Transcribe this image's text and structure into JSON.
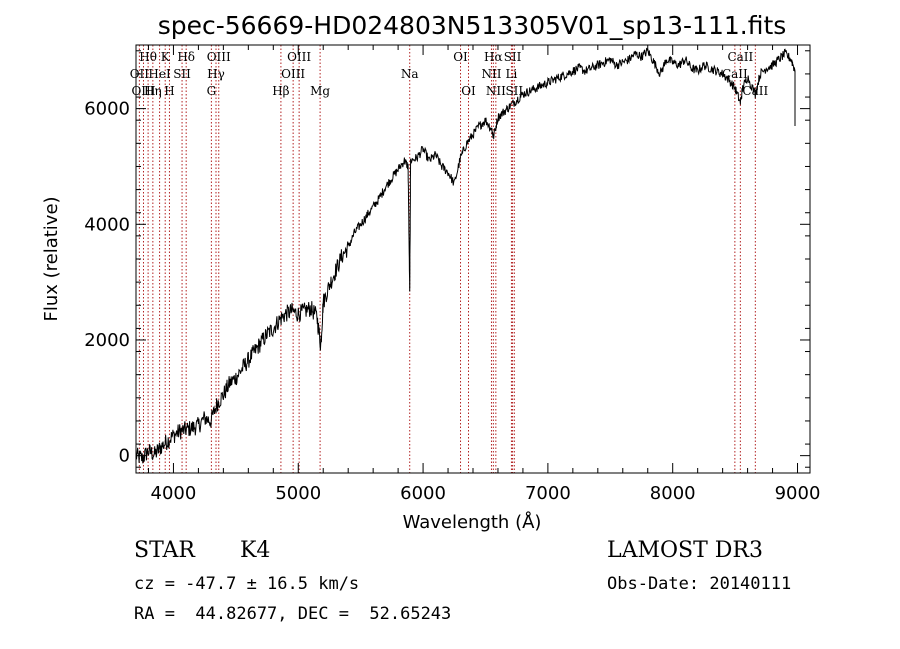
{
  "chart_data": {
    "type": "line",
    "title": "spec-56669-HD024803N513305V01_sp13-111.fits",
    "xlabel": "Wavelength (Å)",
    "ylabel": "Flux (relative)",
    "xlim": [
      3700,
      9100
    ],
    "ylim": [
      -300,
      7100
    ],
    "x_ticks": [
      4000,
      5000,
      6000,
      7000,
      8000,
      9000
    ],
    "x_tick_labels": [
      "4000",
      "5000",
      "6000",
      "7000",
      "8000",
      "9000"
    ],
    "y_ticks": [
      0,
      2000,
      4000,
      6000
    ],
    "y_tick_labels": [
      "0",
      "2000",
      "4000",
      "6000"
    ],
    "series": [
      {
        "name": "flux",
        "x": [
          3700,
          3750,
          3800,
          3850,
          3900,
          3950,
          4000,
          4050,
          4100,
          4150,
          4200,
          4250,
          4300,
          4350,
          4400,
          4450,
          4500,
          4550,
          4600,
          4650,
          4700,
          4750,
          4800,
          4850,
          4900,
          4950,
          5000,
          5050,
          5100,
          5150,
          5180,
          5200,
          5250,
          5300,
          5350,
          5400,
          5450,
          5500,
          5550,
          5600,
          5650,
          5700,
          5750,
          5800,
          5850,
          5880,
          5893,
          5900,
          5950,
          6000,
          6050,
          6100,
          6150,
          6200,
          6250,
          6300,
          6350,
          6400,
          6450,
          6500,
          6550,
          6563,
          6600,
          6650,
          6700,
          6750,
          6800,
          6850,
          6900,
          6950,
          7000,
          7050,
          7100,
          7150,
          7200,
          7250,
          7300,
          7350,
          7400,
          7450,
          7500,
          7550,
          7600,
          7650,
          7700,
          7750,
          7800,
          7850,
          7900,
          7950,
          8000,
          8050,
          8100,
          8150,
          8200,
          8250,
          8300,
          8350,
          8400,
          8450,
          8500,
          8542,
          8560,
          8600,
          8662,
          8700,
          8750,
          8800,
          8850,
          8900,
          8950,
          8980
        ],
        "y": [
          0,
          -50,
          80,
          20,
          150,
          250,
          350,
          420,
          450,
          480,
          520,
          650,
          600,
          900,
          1050,
          1250,
          1350,
          1500,
          1650,
          1800,
          1950,
          2100,
          2200,
          2350,
          2450,
          2500,
          2450,
          2500,
          2550,
          2400,
          1900,
          2650,
          2950,
          3200,
          3450,
          3600,
          3850,
          4000,
          4150,
          4300,
          4450,
          4650,
          4800,
          4950,
          5100,
          5000,
          2800,
          5100,
          5150,
          5300,
          5100,
          5200,
          5000,
          4900,
          4700,
          5150,
          5400,
          5550,
          5700,
          5800,
          5650,
          5500,
          5850,
          5950,
          6050,
          6150,
          6250,
          6300,
          6350,
          6400,
          6450,
          6500,
          6550,
          6600,
          6650,
          6700,
          6650,
          6700,
          6750,
          6800,
          6850,
          6750,
          6800,
          6850,
          6950,
          6900,
          7000,
          6800,
          6600,
          6850,
          6800,
          6750,
          6850,
          6700,
          6650,
          6750,
          6700,
          6650,
          6600,
          6500,
          6350,
          6100,
          6350,
          6550,
          6250,
          6600,
          6700,
          6750,
          6850,
          6950,
          6850,
          6650
        ]
      }
    ],
    "line_markers": [
      {
        "label": "Hθ",
        "x": 3797,
        "row": 0
      },
      {
        "label": "K",
        "x": 3934,
        "row": 0
      },
      {
        "label": "Hδ",
        "x": 4102,
        "row": 0
      },
      {
        "label": "OIII",
        "x": 4363,
        "row": 0
      },
      {
        "label": "OIII",
        "x": 5007,
        "row": 0
      },
      {
        "label": "OI",
        "x": 6300,
        "row": 0
      },
      {
        "label": "Hα",
        "x": 6563,
        "row": 0
      },
      {
        "label": "SII",
        "x": 6717,
        "row": 0
      },
      {
        "label": "CaII",
        "x": 8542,
        "row": 0
      },
      {
        "label": "OII",
        "x": 3727,
        "row": 1
      },
      {
        "label": "HeI",
        "x": 3889,
        "row": 1
      },
      {
        "label": "SII",
        "x": 4069,
        "row": 1
      },
      {
        "label": "Hγ",
        "x": 4341,
        "row": 1
      },
      {
        "label": "OIII",
        "x": 4959,
        "row": 1
      },
      {
        "label": "Na",
        "x": 5893,
        "row": 1
      },
      {
        "label": "NII",
        "x": 6548,
        "row": 1
      },
      {
        "label": "Li",
        "x": 6708,
        "row": 1
      },
      {
        "label": "CaII",
        "x": 8498,
        "row": 1
      },
      {
        "label": "OIII",
        "x": 3760,
        "row": 2
      },
      {
        "label": "Hη",
        "x": 3835,
        "row": 2
      },
      {
        "label": "H",
        "x": 3968,
        "row": 2
      },
      {
        "label": "G",
        "x": 4304,
        "row": 2
      },
      {
        "label": "Hβ",
        "x": 4861,
        "row": 2
      },
      {
        "label": "Mg",
        "x": 5175,
        "row": 2
      },
      {
        "label": "OI",
        "x": 6364,
        "row": 2
      },
      {
        "label": "NII",
        "x": 6583,
        "row": 2
      },
      {
        "label": "SII",
        "x": 6731,
        "row": 2
      },
      {
        "label": "CaII",
        "x": 8662,
        "row": 2
      }
    ]
  },
  "info": {
    "object_class": "STAR",
    "subclass": "K4",
    "survey": "LAMOST DR3",
    "redshift_text": "cz = -47.7 ± 16.5 km/s",
    "obs_date_text": "Obs-Date: 20140111",
    "coords_text": "RA =  44.82677, DEC =  52.65243"
  }
}
